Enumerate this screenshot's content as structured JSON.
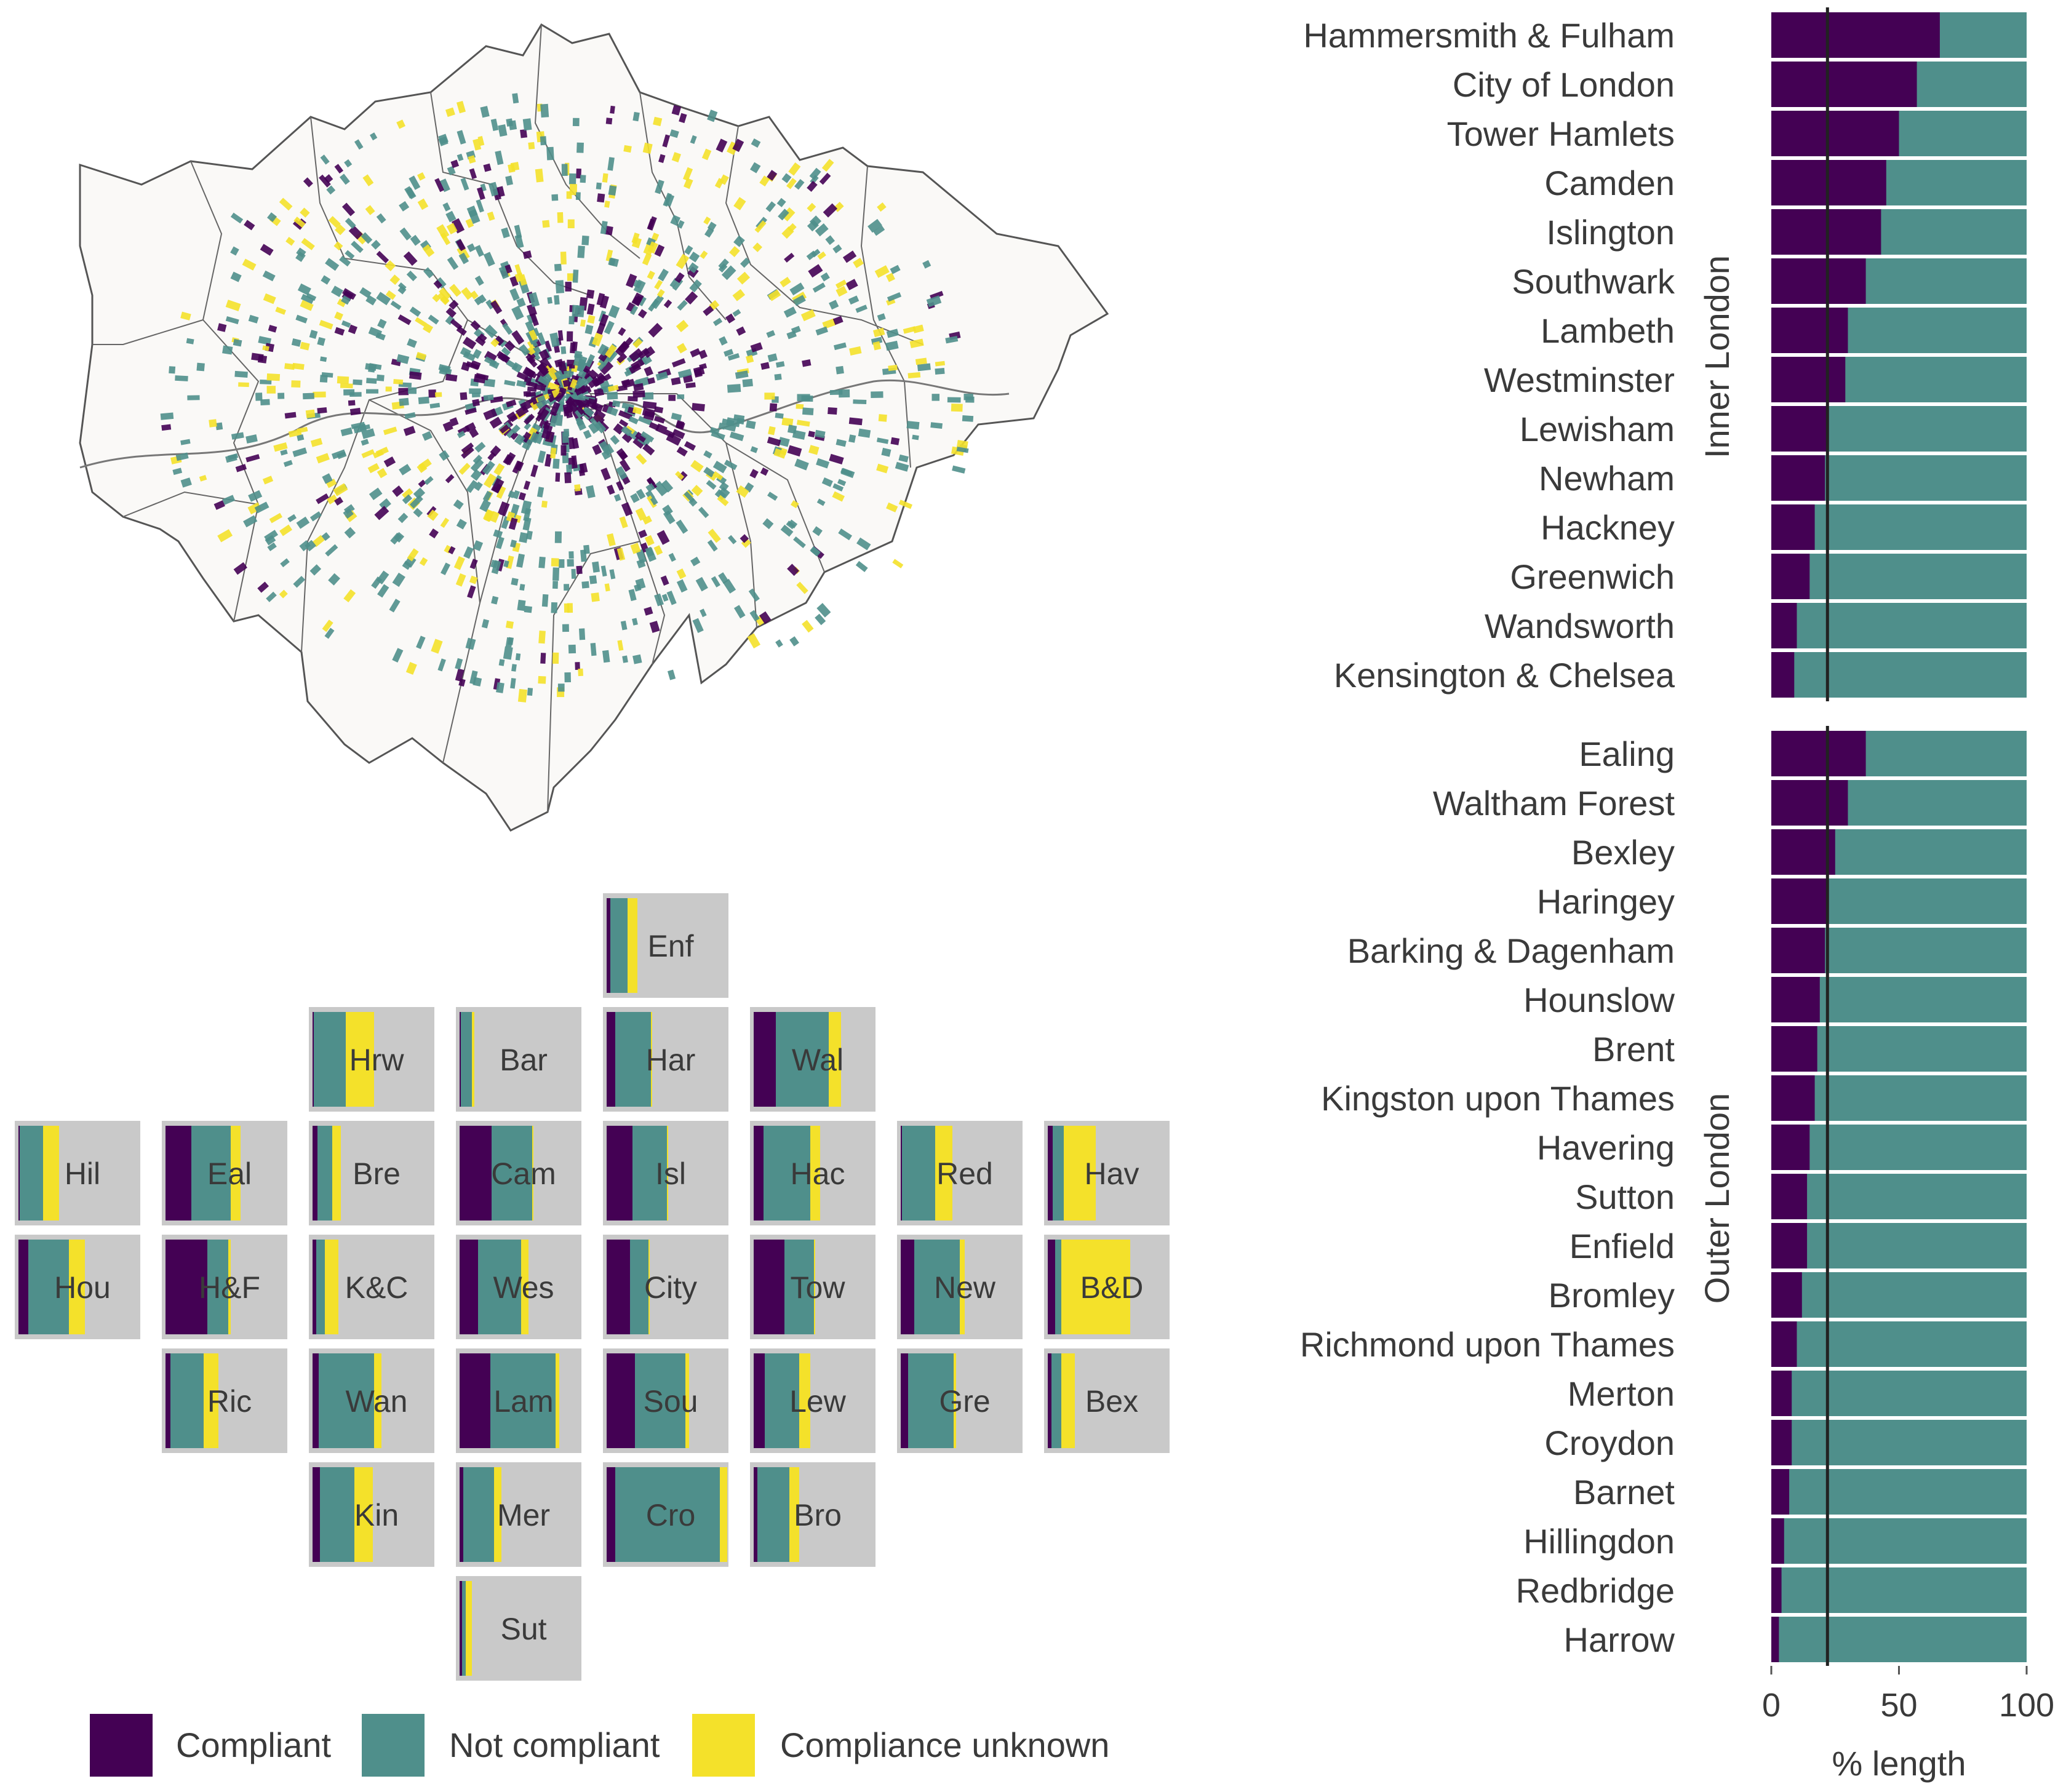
{
  "colors": {
    "compliant": "#440154",
    "not_compliant": "#4f8f8b",
    "unknown": "#f4e12a",
    "tile_bg": "#c9c9c9",
    "map_fill": "#faf9f7",
    "map_stroke": "#555555",
    "reference_line": "#222222"
  },
  "legend": {
    "items": [
      {
        "key": "compliant",
        "label": "Compliant"
      },
      {
        "key": "not_compliant",
        "label": "Not compliant"
      },
      {
        "key": "unknown",
        "label": "Compliance unknown"
      }
    ]
  },
  "chart_data": [
    {
      "type": "map",
      "description_key": "london-borough-map",
      "series": [
        "Compliant",
        "Not compliant",
        "Compliance unknown"
      ]
    },
    {
      "type": "bar",
      "layout": "tile-grid",
      "stacked": true,
      "xlim": [
        0,
        100
      ],
      "tiles": [
        {
          "abbr": "Enf",
          "row": 0,
          "col": 4,
          "values": [
            3,
            14,
            8
          ]
        },
        {
          "abbr": "Hrw",
          "row": 1,
          "col": 2,
          "values": [
            1,
            26,
            23
          ]
        },
        {
          "abbr": "Bar",
          "row": 1,
          "col": 3,
          "values": [
            1,
            9,
            2
          ]
        },
        {
          "abbr": "Har",
          "row": 1,
          "col": 4,
          "values": [
            7,
            29,
            1
          ]
        },
        {
          "abbr": "Wal",
          "row": 1,
          "col": 5,
          "values": [
            18,
            43,
            10
          ]
        },
        {
          "abbr": "Hil",
          "row": 2,
          "col": 0,
          "values": [
            1,
            19,
            13
          ]
        },
        {
          "abbr": "Eal",
          "row": 2,
          "col": 1,
          "values": [
            21,
            32,
            8
          ]
        },
        {
          "abbr": "Bre",
          "row": 2,
          "col": 2,
          "values": [
            4,
            12,
            7
          ]
        },
        {
          "abbr": "Cam",
          "row": 2,
          "col": 3,
          "values": [
            26,
            33,
            1
          ]
        },
        {
          "abbr": "Isl",
          "row": 2,
          "col": 4,
          "values": [
            21,
            28,
            1
          ]
        },
        {
          "abbr": "Hac",
          "row": 2,
          "col": 5,
          "values": [
            8,
            38,
            8
          ]
        },
        {
          "abbr": "Red",
          "row": 2,
          "col": 6,
          "values": [
            1,
            27,
            14
          ]
        },
        {
          "abbr": "Hav",
          "row": 2,
          "col": 7,
          "values": [
            4,
            9,
            26
          ]
        },
        {
          "abbr": "Hou",
          "row": 3,
          "col": 0,
          "values": [
            8,
            33,
            13
          ]
        },
        {
          "abbr": "H&F",
          "row": 3,
          "col": 1,
          "values": [
            34,
            17,
            2
          ]
        },
        {
          "abbr": "K&C",
          "row": 3,
          "col": 2,
          "values": [
            3,
            7,
            11
          ]
        },
        {
          "abbr": "Wes",
          "row": 3,
          "col": 3,
          "values": [
            15,
            35,
            6
          ]
        },
        {
          "abbr": "City",
          "row": 3,
          "col": 4,
          "values": [
            19,
            15,
            1
          ]
        },
        {
          "abbr": "Tow",
          "row": 3,
          "col": 5,
          "values": [
            25,
            24,
            1
          ]
        },
        {
          "abbr": "New",
          "row": 3,
          "col": 6,
          "values": [
            11,
            37,
            4
          ]
        },
        {
          "abbr": "B&D",
          "row": 3,
          "col": 7,
          "values": [
            6,
            5,
            56
          ]
        },
        {
          "abbr": "Ric",
          "row": 4,
          "col": 1,
          "values": [
            4,
            27,
            12
          ]
        },
        {
          "abbr": "Wan",
          "row": 4,
          "col": 2,
          "values": [
            5,
            45,
            6
          ]
        },
        {
          "abbr": "Lam",
          "row": 4,
          "col": 3,
          "values": [
            25,
            53,
            3
          ]
        },
        {
          "abbr": "Sou",
          "row": 4,
          "col": 4,
          "values": [
            23,
            41,
            3
          ]
        },
        {
          "abbr": "Lew",
          "row": 4,
          "col": 5,
          "values": [
            9,
            28,
            9
          ]
        },
        {
          "abbr": "Gre",
          "row": 4,
          "col": 6,
          "values": [
            6,
            37,
            2
          ]
        },
        {
          "abbr": "Bex",
          "row": 4,
          "col": 7,
          "values": [
            3,
            8,
            11
          ]
        },
        {
          "abbr": "Kin",
          "row": 5,
          "col": 2,
          "values": [
            6,
            28,
            15
          ]
        },
        {
          "abbr": "Mer",
          "row": 5,
          "col": 3,
          "values": [
            3,
            25,
            6
          ]
        },
        {
          "abbr": "Cro",
          "row": 5,
          "col": 4,
          "values": [
            7,
            85,
            6
          ]
        },
        {
          "abbr": "Bro",
          "row": 5,
          "col": 5,
          "values": [
            3,
            26,
            8
          ]
        },
        {
          "abbr": "Sut",
          "row": 6,
          "col": 3,
          "values": [
            2,
            3,
            5
          ]
        }
      ]
    },
    {
      "type": "bar",
      "orientation": "horizontal",
      "stacked": true,
      "xlabel": "% length",
      "xlim": [
        0,
        100
      ],
      "xticks": [
        0,
        50,
        100
      ],
      "reference_line": 22,
      "series": [
        {
          "name": "Compliant"
        },
        {
          "name": "Not compliant"
        }
      ],
      "facets": [
        {
          "label": "Inner London",
          "categories": [
            "Hammersmith & Fulham",
            "City of London",
            "Tower Hamlets",
            "Camden",
            "Islington",
            "Southwark",
            "Lambeth",
            "Westminster",
            "Lewisham",
            "Newham",
            "Hackney",
            "Greenwich",
            "Wandsworth",
            "Kensington & Chelsea"
          ],
          "values": [
            66,
            57,
            50,
            45,
            43,
            37,
            30,
            29,
            22,
            21,
            17,
            15,
            10,
            9
          ]
        },
        {
          "label": "Outer London",
          "categories": [
            "Ealing",
            "Waltham Forest",
            "Bexley",
            "Haringey",
            "Barking & Dagenham",
            "Hounslow",
            "Brent",
            "Kingston upon Thames",
            "Havering",
            "Sutton",
            "Enfield",
            "Bromley",
            "Richmond upon Thames",
            "Merton",
            "Croydon",
            "Barnet",
            "Hillingdon",
            "Redbridge",
            "Harrow"
          ],
          "values": [
            37,
            30,
            25,
            22,
            21,
            19,
            18,
            17,
            15,
            14,
            14,
            12,
            10,
            8,
            8,
            7,
            5,
            4,
            3
          ]
        }
      ]
    }
  ]
}
